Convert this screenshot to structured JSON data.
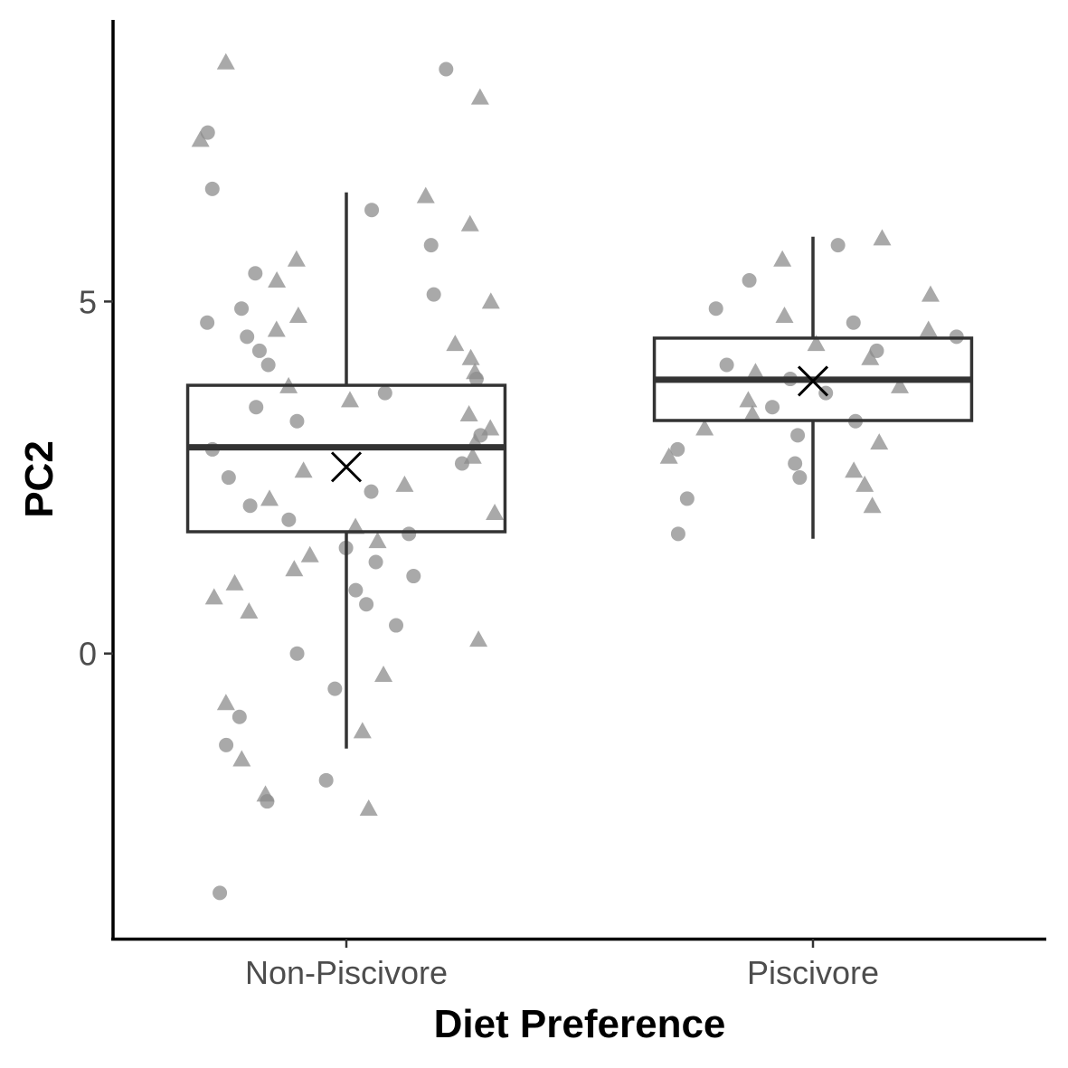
{
  "chart_data": {
    "type": "box",
    "xlabel": "Diet Preference",
    "ylabel": "PC2",
    "categories": [
      "Non-Piscivore",
      "Piscivore"
    ],
    "y_ticks": [
      0,
      5
    ],
    "ylim": [
      -4.05,
      9.0
    ],
    "grid": false,
    "legend": "none",
    "point_color": "#8c8c8c",
    "box_color": "#333333",
    "mean_color": "#000000",
    "boxes": [
      {
        "category": "Non-Piscivore",
        "whisker_low": -1.35,
        "q1": 1.73,
        "median": 2.93,
        "q3": 3.81,
        "whisker_high": 6.55,
        "mean": 2.65
      },
      {
        "category": "Piscivore",
        "whisker_low": 1.63,
        "q1": 3.31,
        "median": 3.89,
        "q3": 4.48,
        "whisker_high": 5.92,
        "mean": 3.87
      }
    ],
    "points": [
      {
        "category": "Non-Piscivore",
        "values": [
          8.4,
          8.3,
          7.9,
          7.4,
          7.3,
          6.6,
          6.5,
          6.3,
          6.1,
          5.8,
          5.6,
          5.4,
          5.3,
          5.1,
          5.0,
          4.9,
          4.8,
          4.7,
          4.6,
          4.5,
          4.4,
          4.3,
          4.2,
          4.1,
          4.0,
          3.9,
          3.8,
          3.7,
          3.6,
          3.5,
          3.4,
          3.3,
          3.2,
          3.1,
          3.0,
          2.9,
          2.8,
          2.7,
          2.6,
          2.5,
          2.4,
          2.3,
          2.2,
          2.1,
          2.0,
          1.9,
          1.8,
          1.7,
          1.6,
          1.5,
          1.4,
          1.3,
          1.2,
          1.1,
          1.0,
          0.9,
          0.8,
          0.7,
          0.6,
          0.4,
          0.2,
          0.0,
          -0.3,
          -0.5,
          -0.7,
          -0.9,
          -1.1,
          -1.3,
          -1.5,
          -1.8,
          -2.0,
          -2.1,
          -2.2,
          -3.4
        ]
      },
      {
        "category": "Piscivore",
        "values": [
          5.9,
          5.8,
          5.6,
          5.3,
          5.1,
          4.9,
          4.8,
          4.7,
          4.6,
          4.5,
          4.4,
          4.3,
          4.2,
          4.1,
          4.0,
          3.9,
          3.8,
          3.7,
          3.6,
          3.5,
          3.4,
          3.3,
          3.2,
          3.1,
          3.0,
          2.9,
          2.8,
          2.7,
          2.6,
          2.5,
          2.4,
          2.2,
          2.1,
          1.7
        ]
      }
    ]
  }
}
